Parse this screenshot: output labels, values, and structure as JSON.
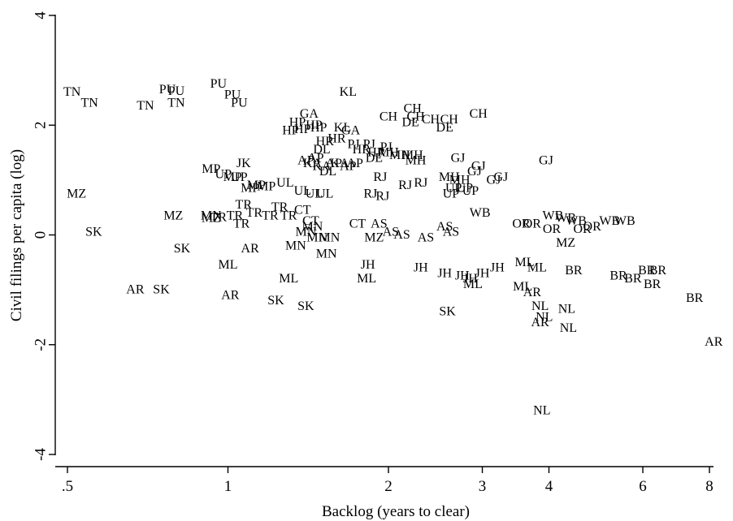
{
  "chart_data": {
    "type": "scatter",
    "xlabel": "Backlog (years to clear)",
    "ylabel": "Civil filings per capita (log)",
    "x_scale": "log",
    "xlim": [
      0.49,
      8.4
    ],
    "ylim": [
      -4.2,
      4.1
    ],
    "x_ticks": [
      0.5,
      1,
      2,
      3,
      4,
      6,
      8
    ],
    "x_tick_labels": [
      ".5",
      "1",
      "2",
      "3",
      "4",
      "6",
      "8"
    ],
    "y_ticks": [
      -4,
      -2,
      0,
      2,
      4
    ],
    "y_tick_labels": [
      "-4",
      "-2",
      "0",
      "2",
      "4"
    ],
    "grid": false,
    "points": [
      {
        "label": "TN",
        "x": 0.51,
        "y": 2.6
      },
      {
        "label": "TN",
        "x": 0.55,
        "y": 2.4
      },
      {
        "label": "TN",
        "x": 0.7,
        "y": 2.35
      },
      {
        "label": "TN",
        "x": 0.8,
        "y": 2.4
      },
      {
        "label": "PU",
        "x": 0.77,
        "y": 2.65
      },
      {
        "label": "PU",
        "x": 0.8,
        "y": 2.62
      },
      {
        "label": "PU",
        "x": 0.96,
        "y": 2.75
      },
      {
        "label": "PU",
        "x": 1.02,
        "y": 2.55
      },
      {
        "label": "PU",
        "x": 1.05,
        "y": 2.4
      },
      {
        "label": "KL",
        "x": 1.68,
        "y": 2.6
      },
      {
        "label": "GA",
        "x": 1.42,
        "y": 2.2
      },
      {
        "label": "GA",
        "x": 1.7,
        "y": 1.9
      },
      {
        "label": "KL",
        "x": 1.64,
        "y": 1.95
      },
      {
        "label": "HP",
        "x": 1.35,
        "y": 2.05
      },
      {
        "label": "HP",
        "x": 1.31,
        "y": 1.9
      },
      {
        "label": "HP",
        "x": 1.38,
        "y": 1.92
      },
      {
        "label": "HP",
        "x": 1.45,
        "y": 2.0
      },
      {
        "label": "HP",
        "x": 1.48,
        "y": 1.95
      },
      {
        "label": "HR",
        "x": 1.52,
        "y": 1.7
      },
      {
        "label": "HR",
        "x": 1.6,
        "y": 1.75
      },
      {
        "label": "DL",
        "x": 1.5,
        "y": 1.55
      },
      {
        "label": "PJ",
        "x": 1.72,
        "y": 1.65
      },
      {
        "label": "PJ",
        "x": 1.84,
        "y": 1.65
      },
      {
        "label": "PJ",
        "x": 1.98,
        "y": 1.6
      },
      {
        "label": "HR",
        "x": 1.78,
        "y": 1.55
      },
      {
        "label": "HR",
        "x": 1.9,
        "y": 1.5
      },
      {
        "label": "DE",
        "x": 1.88,
        "y": 1.4
      },
      {
        "label": "MH",
        "x": 2.0,
        "y": 1.5
      },
      {
        "label": "CH",
        "x": 2.0,
        "y": 2.15
      },
      {
        "label": "CH",
        "x": 2.22,
        "y": 2.3
      },
      {
        "label": "CH",
        "x": 2.25,
        "y": 2.15
      },
      {
        "label": "CH",
        "x": 2.4,
        "y": 2.1
      },
      {
        "label": "CH",
        "x": 2.6,
        "y": 2.1
      },
      {
        "label": "CH",
        "x": 2.95,
        "y": 2.2
      },
      {
        "label": "DE",
        "x": 2.2,
        "y": 2.05
      },
      {
        "label": "DE",
        "x": 2.55,
        "y": 1.95
      },
      {
        "label": "MH",
        "x": 2.1,
        "y": 1.45
      },
      {
        "label": "MH",
        "x": 2.22,
        "y": 1.45
      },
      {
        "label": "MH",
        "x": 2.25,
        "y": 1.35
      },
      {
        "label": "AP",
        "x": 1.4,
        "y": 1.35
      },
      {
        "label": "AP",
        "x": 1.46,
        "y": 1.4
      },
      {
        "label": "AP",
        "x": 1.58,
        "y": 1.3
      },
      {
        "label": "AP",
        "x": 1.68,
        "y": 1.25
      },
      {
        "label": "AP",
        "x": 1.73,
        "y": 1.3
      },
      {
        "label": "KA",
        "x": 1.44,
        "y": 1.3
      },
      {
        "label": "KA",
        "x": 1.5,
        "y": 1.25
      },
      {
        "label": "KA",
        "x": 1.62,
        "y": 1.3
      },
      {
        "label": "DL",
        "x": 1.54,
        "y": 1.15
      },
      {
        "label": "JK",
        "x": 1.07,
        "y": 1.3
      },
      {
        "label": "MP",
        "x": 0.93,
        "y": 1.2
      },
      {
        "label": "MP",
        "x": 1.02,
        "y": 1.05
      },
      {
        "label": "UP",
        "x": 0.98,
        "y": 1.1
      },
      {
        "label": "UP",
        "x": 1.05,
        "y": 1.05
      },
      {
        "label": "MP",
        "x": 1.1,
        "y": 0.85
      },
      {
        "label": "MP",
        "x": 1.18,
        "y": 0.88
      },
      {
        "label": "UL",
        "x": 1.28,
        "y": 0.95
      },
      {
        "label": "UL",
        "x": 1.38,
        "y": 0.8
      },
      {
        "label": "UL",
        "x": 1.45,
        "y": 0.75
      },
      {
        "label": "UL",
        "x": 1.52,
        "y": 0.75
      },
      {
        "label": "MP",
        "x": 1.13,
        "y": 0.9
      },
      {
        "label": "RJ",
        "x": 1.93,
        "y": 1.05
      },
      {
        "label": "RJ",
        "x": 1.85,
        "y": 0.75
      },
      {
        "label": "RJ",
        "x": 1.95,
        "y": 0.7
      },
      {
        "label": "RJ",
        "x": 2.15,
        "y": 0.9
      },
      {
        "label": "RJ",
        "x": 2.3,
        "y": 0.95
      },
      {
        "label": "GJ",
        "x": 2.7,
        "y": 1.4
      },
      {
        "label": "GJ",
        "x": 2.95,
        "y": 1.25
      },
      {
        "label": "GJ",
        "x": 2.9,
        "y": 1.15
      },
      {
        "label": "GJ",
        "x": 3.15,
        "y": 1.0
      },
      {
        "label": "GJ",
        "x": 3.25,
        "y": 1.05
      },
      {
        "label": "GJ",
        "x": 3.95,
        "y": 1.35
      },
      {
        "label": "MH",
        "x": 2.6,
        "y": 1.05
      },
      {
        "label": "MH",
        "x": 2.72,
        "y": 1.0
      },
      {
        "label": "UP",
        "x": 2.65,
        "y": 0.85
      },
      {
        "label": "UP",
        "x": 2.78,
        "y": 0.85
      },
      {
        "label": "UP",
        "x": 2.85,
        "y": 0.8
      },
      {
        "label": "UP",
        "x": 2.62,
        "y": 0.75
      },
      {
        "label": "MZ",
        "x": 0.52,
        "y": 0.75
      },
      {
        "label": "MZ",
        "x": 0.79,
        "y": 0.35
      },
      {
        "label": "MZ",
        "x": 0.93,
        "y": 0.3
      },
      {
        "label": "MN",
        "x": 0.93,
        "y": 0.35
      },
      {
        "label": "TR",
        "x": 0.96,
        "y": 0.32
      },
      {
        "label": "TR",
        "x": 1.03,
        "y": 0.35
      },
      {
        "label": "TR",
        "x": 1.07,
        "y": 0.55
      },
      {
        "label": "TR",
        "x": 1.12,
        "y": 0.4
      },
      {
        "label": "TR",
        "x": 1.2,
        "y": 0.35
      },
      {
        "label": "TR",
        "x": 1.25,
        "y": 0.5
      },
      {
        "label": "TR",
        "x": 1.3,
        "y": 0.35
      },
      {
        "label": "TR",
        "x": 1.06,
        "y": 0.2
      },
      {
        "label": "CT",
        "x": 1.38,
        "y": 0.45
      },
      {
        "label": "CT",
        "x": 1.43,
        "y": 0.25
      },
      {
        "label": "CT",
        "x": 1.75,
        "y": 0.2
      },
      {
        "label": "MN",
        "x": 1.44,
        "y": 0.15
      },
      {
        "label": "MN",
        "x": 1.47,
        "y": -0.05
      },
      {
        "label": "MN",
        "x": 1.4,
        "y": 0.05
      },
      {
        "label": "MN",
        "x": 1.55,
        "y": -0.05
      },
      {
        "label": "MN",
        "x": 1.34,
        "y": -0.2
      },
      {
        "label": "MN",
        "x": 1.53,
        "y": -0.35
      },
      {
        "label": "AS",
        "x": 1.92,
        "y": 0.2
      },
      {
        "label": "AS",
        "x": 2.02,
        "y": 0.05
      },
      {
        "label": "AS",
        "x": 2.12,
        "y": 0.0
      },
      {
        "label": "AS",
        "x": 2.35,
        "y": -0.05
      },
      {
        "label": "AS",
        "x": 2.55,
        "y": 0.15
      },
      {
        "label": "AS",
        "x": 2.62,
        "y": 0.05
      },
      {
        "label": "MZ",
        "x": 1.88,
        "y": -0.05
      },
      {
        "label": "WB",
        "x": 2.97,
        "y": 0.4
      },
      {
        "label": "WB",
        "x": 4.07,
        "y": 0.35
      },
      {
        "label": "WB",
        "x": 4.3,
        "y": 0.3
      },
      {
        "label": "WB",
        "x": 4.5,
        "y": 0.25
      },
      {
        "label": "WB",
        "x": 5.2,
        "y": 0.25
      },
      {
        "label": "WB",
        "x": 5.55,
        "y": 0.25
      },
      {
        "label": "OR",
        "x": 3.55,
        "y": 0.2
      },
      {
        "label": "OR",
        "x": 3.72,
        "y": 0.2
      },
      {
        "label": "OR",
        "x": 4.05,
        "y": 0.1
      },
      {
        "label": "OR",
        "x": 4.62,
        "y": 0.1
      },
      {
        "label": "OR",
        "x": 4.82,
        "y": 0.15
      },
      {
        "label": "MZ",
        "x": 4.3,
        "y": -0.15
      },
      {
        "label": "SK",
        "x": 0.56,
        "y": 0.05
      },
      {
        "label": "SK",
        "x": 0.82,
        "y": -0.25
      },
      {
        "label": "SK",
        "x": 0.75,
        "y": -1.0
      },
      {
        "label": "SK",
        "x": 1.23,
        "y": -1.2
      },
      {
        "label": "SK",
        "x": 1.4,
        "y": -1.3
      },
      {
        "label": "SK",
        "x": 2.58,
        "y": -1.4
      },
      {
        "label": "AR",
        "x": 0.67,
        "y": -1.0
      },
      {
        "label": "AR",
        "x": 1.01,
        "y": -1.1
      },
      {
        "label": "AR",
        "x": 1.1,
        "y": -0.25
      },
      {
        "label": "AR",
        "x": 3.72,
        "y": -1.05
      },
      {
        "label": "AR",
        "x": 3.85,
        "y": -1.6
      },
      {
        "label": "AR",
        "x": 8.15,
        "y": -1.95
      },
      {
        "label": "ML",
        "x": 1.0,
        "y": -0.55
      },
      {
        "label": "ML",
        "x": 1.3,
        "y": -0.8
      },
      {
        "label": "ML",
        "x": 1.82,
        "y": -0.8
      },
      {
        "label": "ML",
        "x": 2.88,
        "y": -0.9
      },
      {
        "label": "ML",
        "x": 3.57,
        "y": -0.95
      },
      {
        "label": "ML",
        "x": 3.6,
        "y": -0.5
      },
      {
        "label": "ML",
        "x": 3.8,
        "y": -0.6
      },
      {
        "label": "JH",
        "x": 1.83,
        "y": -0.55
      },
      {
        "label": "JH",
        "x": 2.3,
        "y": -0.6
      },
      {
        "label": "JH",
        "x": 2.55,
        "y": -0.7
      },
      {
        "label": "JH",
        "x": 2.75,
        "y": -0.75
      },
      {
        "label": "JH",
        "x": 2.85,
        "y": -0.8
      },
      {
        "label": "JH",
        "x": 3.0,
        "y": -0.7
      },
      {
        "label": "JH",
        "x": 3.2,
        "y": -0.6
      },
      {
        "label": "BR",
        "x": 4.45,
        "y": -0.65
      },
      {
        "label": "BR",
        "x": 5.4,
        "y": -0.75
      },
      {
        "label": "BR",
        "x": 5.75,
        "y": -0.8
      },
      {
        "label": "BR",
        "x": 6.1,
        "y": -0.65
      },
      {
        "label": "BR",
        "x": 6.4,
        "y": -0.65
      },
      {
        "label": "BR",
        "x": 6.25,
        "y": -0.9
      },
      {
        "label": "BR",
        "x": 7.5,
        "y": -1.15
      },
      {
        "label": "NL",
        "x": 3.85,
        "y": -1.3
      },
      {
        "label": "NL",
        "x": 3.92,
        "y": -1.5
      },
      {
        "label": "NL",
        "x": 4.32,
        "y": -1.35
      },
      {
        "label": "NL",
        "x": 4.35,
        "y": -1.7
      },
      {
        "label": "NL",
        "x": 3.88,
        "y": -3.2
      }
    ]
  }
}
